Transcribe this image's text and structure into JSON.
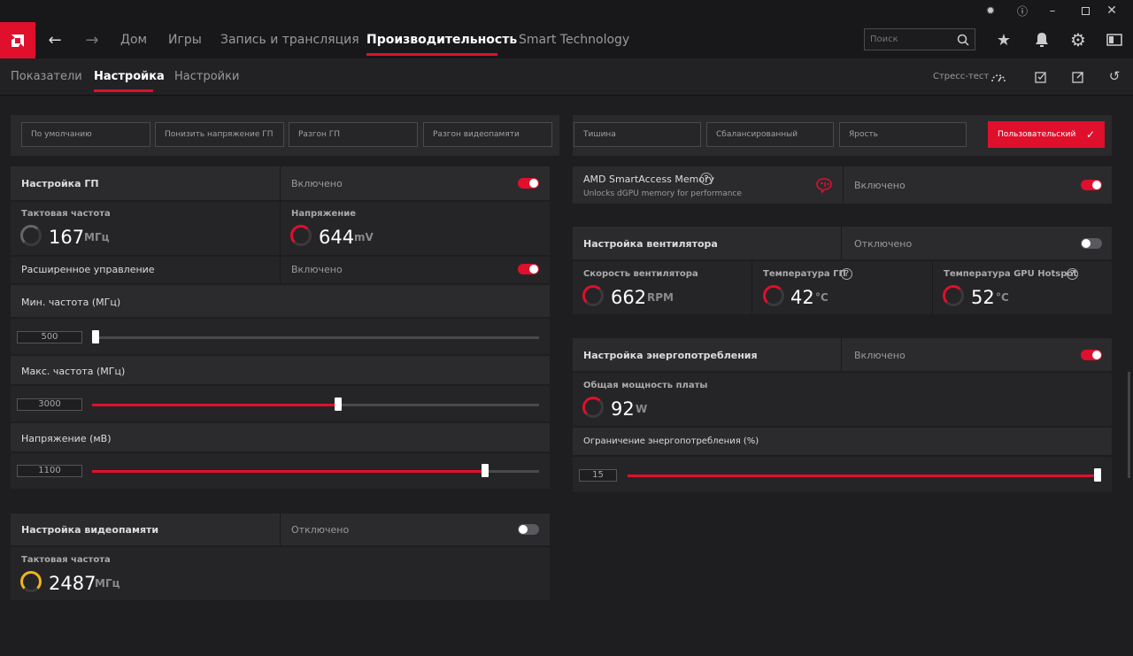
{
  "nav": {
    "items": [
      {
        "label": "Дом"
      },
      {
        "label": "Игры"
      },
      {
        "label": "Запись и трансляция"
      },
      {
        "label": "Производительность"
      },
      {
        "label": "Smart Technology"
      }
    ],
    "search_placeholder": "Поиск"
  },
  "subnav": {
    "tabs": [
      "Показатели",
      "Настройка",
      "Настройки"
    ],
    "stress_test": "Стресс-тест"
  },
  "presets": {
    "tuning": [
      "По умолчанию",
      "Понизить напряжение ГП",
      "Разгон ГП",
      "Разгон видеопамяти"
    ],
    "profiles": [
      "Тишина",
      "Сбалансированный",
      "Ярость"
    ],
    "custom": "Пользовательский"
  },
  "gpu": {
    "title": "Настройка ГП",
    "state": "Включено",
    "enabled": true,
    "clock_label": "Тактовая частота",
    "clock_value": "167",
    "clock_unit": "МГц",
    "voltage_label": "Напряжение",
    "voltage_value": "644",
    "voltage_unit": "mV",
    "advanced_label": "Расширенное управление",
    "advanced_state": "Включено",
    "min_label": "Мин. частота (МГц)",
    "min_value": "500",
    "min_fraction": 0.0,
    "max_label": "Макс. частота (МГц)",
    "max_value": "3000",
    "max_fraction": 0.55,
    "volt_label": "Напряжение (мВ)",
    "volt_value": "1100",
    "volt_fraction": 0.88
  },
  "vram": {
    "title": "Настройка видеопамяти",
    "state": "Отключено",
    "enabled": false,
    "clock_label": "Тактовая частота",
    "clock_value": "2487",
    "clock_unit": "МГц"
  },
  "sam": {
    "title": "AMD SmartAccess Memory",
    "subtitle": "Unlocks dGPU memory for performance",
    "state": "Включено",
    "enabled": true
  },
  "fan": {
    "title": "Настройка вентилятора",
    "state": "Отключено",
    "enabled": false,
    "speed_label": "Скорость вентилятора",
    "speed_value": "662",
    "speed_unit": "RPM",
    "temp_label": "Температура ГП",
    "temp_value": "42",
    "temp_unit": "°C",
    "hotspot_label": "Температура GPU Hotspot",
    "hotspot_value": "52",
    "hotspot_unit": "°C"
  },
  "power": {
    "title": "Настройка энергопотребления",
    "state": "Включено",
    "enabled": true,
    "board_label": "Общая мощность платы",
    "board_value": "92",
    "board_unit": "W",
    "limit_label": "Ограничение энергопотребления (%)",
    "limit_value": "15",
    "limit_fraction": 1.0
  },
  "colors": {
    "accent": "#e00f2c",
    "clock_gauge": "#f0b41e"
  }
}
